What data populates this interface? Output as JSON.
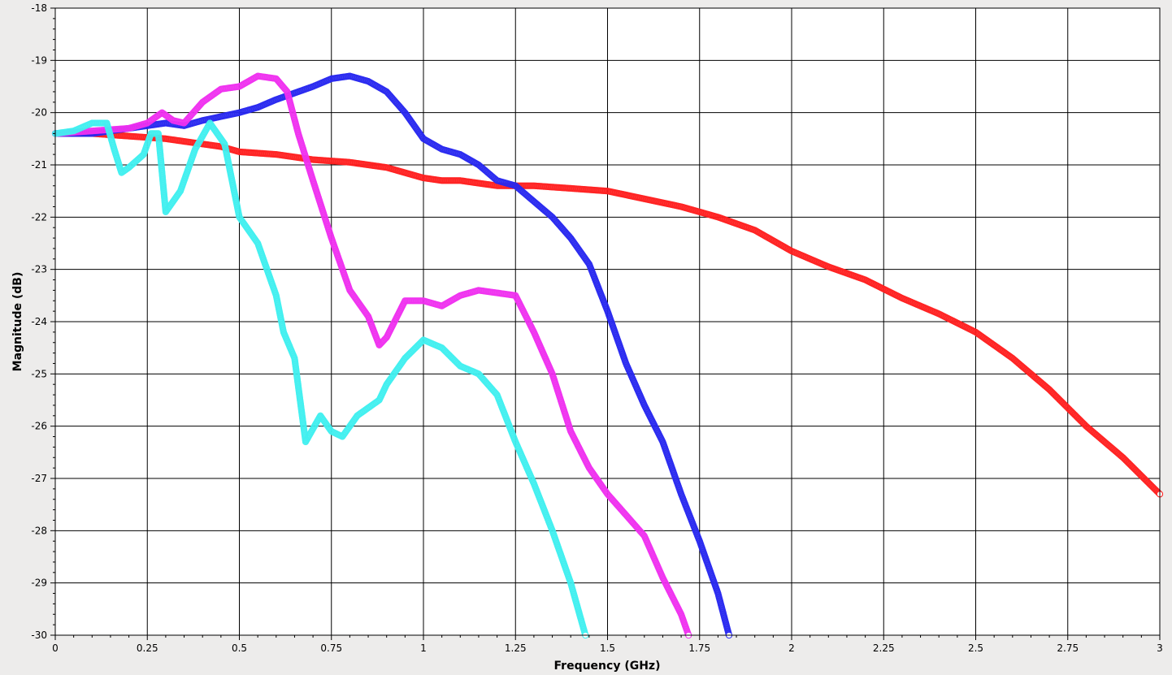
{
  "chart_data": {
    "type": "line",
    "title": "",
    "xlabel": "Frequency (GHz)",
    "ylabel": "Magnitude (dB)",
    "xlim": [
      0,
      3
    ],
    "ylim": [
      -30,
      -18
    ],
    "xticks": [
      "0",
      "0.25",
      "0.5",
      "0.75",
      "1",
      "1.25",
      "1.5",
      "1.75",
      "2",
      "2.25",
      "2.5",
      "2.75",
      "3"
    ],
    "yticks": [
      "-18",
      "-19",
      "-20",
      "-21",
      "-22",
      "-23",
      "-24",
      "-25",
      "-26",
      "-27",
      "-28",
      "-29",
      "-30"
    ],
    "grid": true,
    "legend": "none",
    "series": [
      {
        "color": "#ff2020",
        "marker": "circle-open",
        "points": [
          [
            0,
            -20.4
          ],
          [
            0.1,
            -20.4
          ],
          [
            0.2,
            -20.45
          ],
          [
            0.3,
            -20.5
          ],
          [
            0.35,
            -20.55
          ],
          [
            0.4,
            -20.6
          ],
          [
            0.45,
            -20.65
          ],
          [
            0.5,
            -20.75
          ],
          [
            0.6,
            -20.8
          ],
          [
            0.7,
            -20.9
          ],
          [
            0.8,
            -20.95
          ],
          [
            0.85,
            -21
          ],
          [
            0.9,
            -21.05
          ],
          [
            1,
            -21.25
          ],
          [
            1.05,
            -21.3
          ],
          [
            1.1,
            -21.3
          ],
          [
            1.15,
            -21.35
          ],
          [
            1.2,
            -21.4
          ],
          [
            1.3,
            -21.4
          ],
          [
            1.4,
            -21.45
          ],
          [
            1.5,
            -21.5
          ],
          [
            1.6,
            -21.65
          ],
          [
            1.7,
            -21.8
          ],
          [
            1.8,
            -22
          ],
          [
            1.9,
            -22.25
          ],
          [
            2,
            -22.65
          ],
          [
            2.1,
            -22.95
          ],
          [
            2.2,
            -23.2
          ],
          [
            2.3,
            -23.55
          ],
          [
            2.4,
            -23.85
          ],
          [
            2.5,
            -24.2
          ],
          [
            2.6,
            -24.7
          ],
          [
            2.7,
            -25.3
          ],
          [
            2.8,
            -26
          ],
          [
            2.9,
            -26.6
          ],
          [
            3,
            -27.3
          ]
        ]
      },
      {
        "color": "#2828f0",
        "marker": "circle-open",
        "points": [
          [
            0,
            -20.4
          ],
          [
            0.1,
            -20.4
          ],
          [
            0.2,
            -20.3
          ],
          [
            0.3,
            -20.2
          ],
          [
            0.35,
            -20.25
          ],
          [
            0.4,
            -20.15
          ],
          [
            0.5,
            -20
          ],
          [
            0.55,
            -19.9
          ],
          [
            0.6,
            -19.75
          ],
          [
            0.7,
            -19.5
          ],
          [
            0.75,
            -19.35
          ],
          [
            0.8,
            -19.3
          ],
          [
            0.85,
            -19.4
          ],
          [
            0.9,
            -19.6
          ],
          [
            0.95,
            -20
          ],
          [
            1,
            -20.5
          ],
          [
            1.05,
            -20.7
          ],
          [
            1.1,
            -20.8
          ],
          [
            1.15,
            -21
          ],
          [
            1.2,
            -21.3
          ],
          [
            1.25,
            -21.4
          ],
          [
            1.3,
            -21.7
          ],
          [
            1.35,
            -22
          ],
          [
            1.4,
            -22.4
          ],
          [
            1.45,
            -22.9
          ],
          [
            1.5,
            -23.8
          ],
          [
            1.55,
            -24.8
          ],
          [
            1.6,
            -25.6
          ],
          [
            1.65,
            -26.3
          ],
          [
            1.7,
            -27.3
          ],
          [
            1.75,
            -28.2
          ],
          [
            1.8,
            -29.2
          ],
          [
            1.83,
            -30
          ]
        ]
      },
      {
        "color": "#f030f0",
        "marker": "circle-open",
        "points": [
          [
            0,
            -20.4
          ],
          [
            0.1,
            -20.35
          ],
          [
            0.2,
            -20.3
          ],
          [
            0.25,
            -20.2
          ],
          [
            0.29,
            -20
          ],
          [
            0.32,
            -20.15
          ],
          [
            0.35,
            -20.2
          ],
          [
            0.4,
            -19.8
          ],
          [
            0.45,
            -19.55
          ],
          [
            0.5,
            -19.5
          ],
          [
            0.55,
            -19.3
          ],
          [
            0.6,
            -19.35
          ],
          [
            0.63,
            -19.6
          ],
          [
            0.66,
            -20.4
          ],
          [
            0.7,
            -21.3
          ],
          [
            0.75,
            -22.4
          ],
          [
            0.8,
            -23.4
          ],
          [
            0.85,
            -23.9
          ],
          [
            0.88,
            -24.45
          ],
          [
            0.9,
            -24.3
          ],
          [
            0.95,
            -23.6
          ],
          [
            1,
            -23.6
          ],
          [
            1.05,
            -23.7
          ],
          [
            1.1,
            -23.5
          ],
          [
            1.15,
            -23.4
          ],
          [
            1.2,
            -23.45
          ],
          [
            1.25,
            -23.5
          ],
          [
            1.3,
            -24.2
          ],
          [
            1.35,
            -25
          ],
          [
            1.4,
            -26.1
          ],
          [
            1.45,
            -26.8
          ],
          [
            1.5,
            -27.3
          ],
          [
            1.55,
            -27.7
          ],
          [
            1.6,
            -28.1
          ],
          [
            1.65,
            -28.9
          ],
          [
            1.7,
            -29.6
          ],
          [
            1.72,
            -30
          ]
        ]
      },
      {
        "color": "#40f0f0",
        "marker": "circle-open",
        "points": [
          [
            0,
            -20.4
          ],
          [
            0.05,
            -20.35
          ],
          [
            0.1,
            -20.2
          ],
          [
            0.14,
            -20.2
          ],
          [
            0.16,
            -20.7
          ],
          [
            0.18,
            -21.15
          ],
          [
            0.2,
            -21.05
          ],
          [
            0.24,
            -20.8
          ],
          [
            0.26,
            -20.4
          ],
          [
            0.28,
            -20.4
          ],
          [
            0.3,
            -21.9
          ],
          [
            0.34,
            -21.5
          ],
          [
            0.38,
            -20.7
          ],
          [
            0.42,
            -20.2
          ],
          [
            0.46,
            -20.6
          ],
          [
            0.5,
            -22
          ],
          [
            0.55,
            -22.5
          ],
          [
            0.6,
            -23.5
          ],
          [
            0.62,
            -24.2
          ],
          [
            0.65,
            -24.7
          ],
          [
            0.68,
            -26.3
          ],
          [
            0.72,
            -25.8
          ],
          [
            0.75,
            -26.1
          ],
          [
            0.78,
            -26.2
          ],
          [
            0.82,
            -25.8
          ],
          [
            0.88,
            -25.5
          ],
          [
            0.9,
            -25.2
          ],
          [
            0.95,
            -24.7
          ],
          [
            1,
            -24.35
          ],
          [
            1.05,
            -24.5
          ],
          [
            1.1,
            -24.85
          ],
          [
            1.15,
            -25
          ],
          [
            1.2,
            -25.4
          ],
          [
            1.25,
            -26.3
          ],
          [
            1.3,
            -27.1
          ],
          [
            1.35,
            -28
          ],
          [
            1.4,
            -29
          ],
          [
            1.44,
            -30
          ]
        ]
      }
    ]
  }
}
